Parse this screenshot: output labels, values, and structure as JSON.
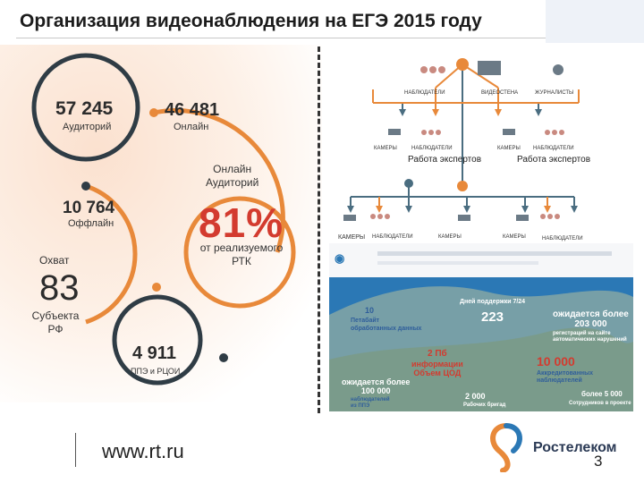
{
  "title": "Организация видеонаблюдения на ЕГЭ 2015 году",
  "stats": {
    "auditoriums_total": "57 245",
    "auditoriums_label": "Аудиторий",
    "online_count": "46 481",
    "online_label": "Онлайн",
    "online_auditoriums": "Онлайн\nАудиторий",
    "offline_count": "10 764",
    "offline_label": "Оффлайн",
    "coverage_label": "Охват",
    "regions_count": "83",
    "regions_label": "Субъекта\nРФ",
    "percent": "81%",
    "percent_label": "от реализуемого\nРТК",
    "ppe_count": "4 911",
    "ppe_label": "ППЭ и РЦОИ"
  },
  "diagram": {
    "top_observers": "НАБЛЮДАТЕЛИ",
    "top_videowall": "ВИДЕОСТЕНА",
    "top_journalists": "ЖУРНАЛИСТЫ",
    "mid_cameras_1": "КАМЕРЫ",
    "mid_observers_1": "НАБЛЮДАТЕЛИ",
    "mid_cameras_2": "КАМЕРЫ",
    "mid_observers_2": "НАБЛЮДАТЕЛИ",
    "experts_1": "Работа экспертов",
    "experts_2": "Работа экспертов",
    "bot_cameras_1": "КАМЕРЫ",
    "bot_observers_1": "НАБЛЮДАТЕЛИ",
    "bot_cameras_2": "КАМЕРЫ",
    "bot_cameras_3": "КАМЕРЫ",
    "bot_observers_2": "НАБЛЮДАТЕЛИ"
  },
  "map": {
    "n10": "10",
    "n10_caption": "Петабайт\nобработанных данных",
    "support_days": "Дней поддержки 7/24",
    "n223": "223",
    "expected_reg": "ожидается более\n203 000",
    "expected_reg_caption": "регистраций на сайте\nавтоматических нарушений",
    "pb2": "2 Пб",
    "pb2_caption": "информации\nОбъем ЦОД",
    "n10000": "10 000",
    "n10000_caption": "Аккредитованных\nнаблюдателей",
    "expected_100k": "ожидается более\n100 000",
    "expected_100k_caption": "наблюдателей\nиз ППЭ",
    "n2000": "2 000",
    "n2000_caption": "Рабочих бригад",
    "more5000": "более 5 000",
    "more5000_caption": "Сотрудников в проекте"
  },
  "colors": {
    "orange": "#e8893a",
    "steel": "#4a6d80",
    "dark": "#2f3c45",
    "red": "#d33b2f",
    "blue": "#2b78b5"
  },
  "footer": {
    "url": "www.rt.ru",
    "brand": "Ростелеком",
    "page": "3"
  }
}
